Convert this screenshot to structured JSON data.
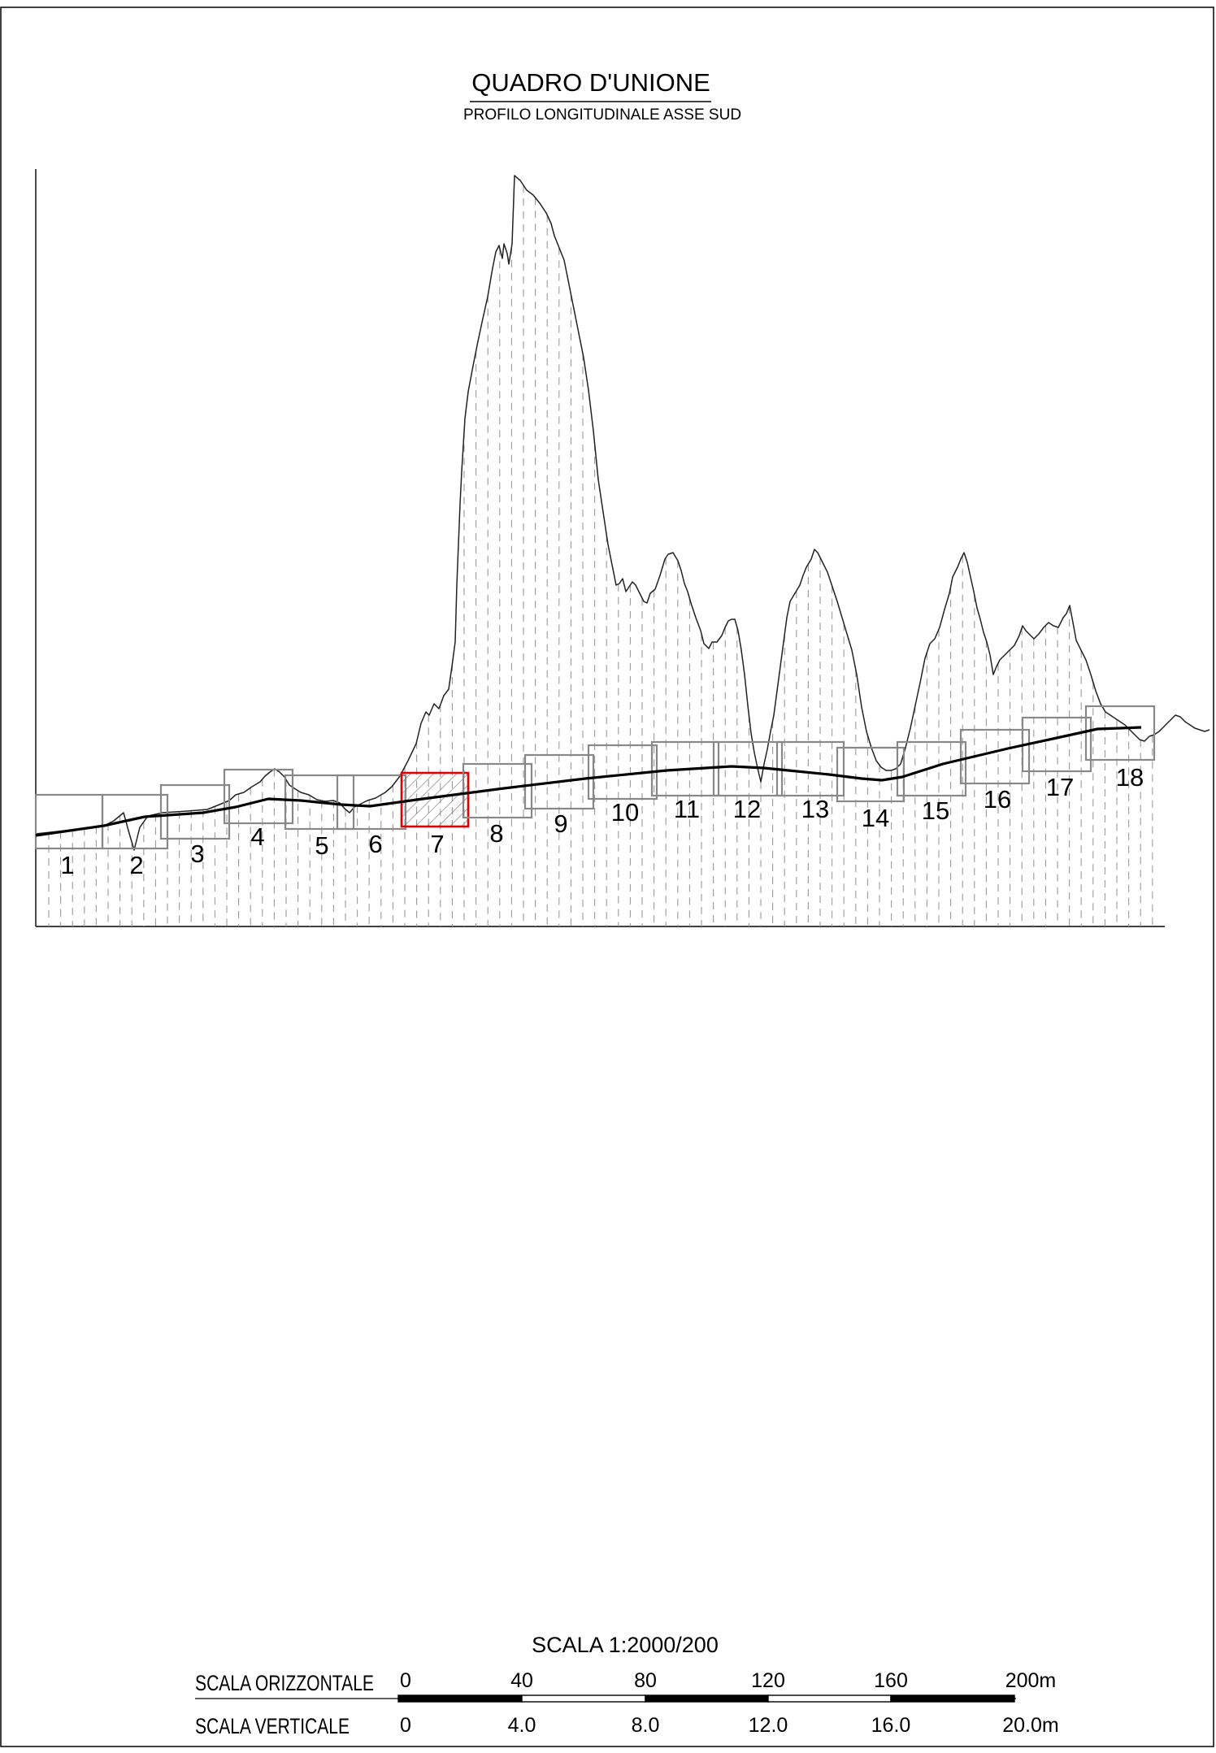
{
  "titles": {
    "main": "QUADRO D'UNIONE",
    "sub": "PROFILO LONGITUDINALE ASSE SUD"
  },
  "sheets": {
    "labels": [
      "1",
      "2",
      "3",
      "4",
      "5",
      "6",
      "7",
      "8",
      "9",
      "10",
      "11",
      "12",
      "13",
      "14",
      "15",
      "16",
      "17",
      "18"
    ],
    "selected": "7"
  },
  "scale": {
    "title": "SCALA 1:2000/200",
    "horizontal_label": "SCALA ORIZZONTALE",
    "vertical_label": "SCALA VERTICALE",
    "horizontal_ticks": [
      "0",
      "40",
      "80",
      "120",
      "160",
      "200m"
    ],
    "vertical_ticks": [
      "0",
      "4.0",
      "8.0",
      "12.0",
      "16.0",
      "20.0m"
    ]
  },
  "colors": {
    "terrain": "#222222",
    "road": "#000000",
    "frames": "#888888",
    "selected_frame": "#e00000",
    "section_lines": "#9a9a9a"
  }
}
